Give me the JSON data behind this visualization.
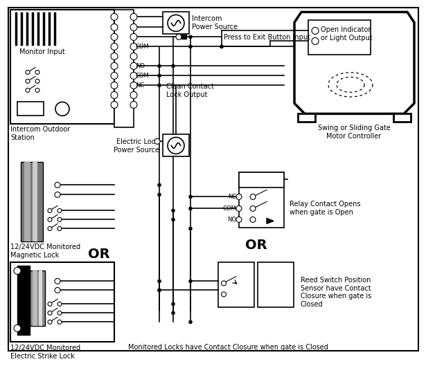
{
  "bg": "#ffffff",
  "labels": {
    "intercom_ps": "Intercom\nPower Source",
    "press_exit": "Press to Exit Button Input",
    "clean_contact": "Clean Contact\nLock Output",
    "monitor_input": "Monitor Input",
    "intercom_station": "Intercom Outdoor\nStation",
    "elec_lock_ps": "Electric Lock\nPower Source",
    "mag_lock": "12/24VDC Monitored\nMagnetic Lock",
    "elec_strike": "12/24VDC Monitored\nElectric Strike Lock",
    "or1": "OR",
    "or2": "OR",
    "relay_contact": "Relay Contact Opens\nwhen gate is Open",
    "reed_switch": "Reed Switch Position\nSensor have Contact\nClosure when gate is\nClosed",
    "swing_gate": "Swing or Sliding Gate\nMotor Controller",
    "open_indicator": "Open Indicator\nor Light Output",
    "COM": "COM",
    "NO": "NO",
    "NC": "NC",
    "bottom": "Monitored Locks have Contact Closure when gate is Closed"
  }
}
